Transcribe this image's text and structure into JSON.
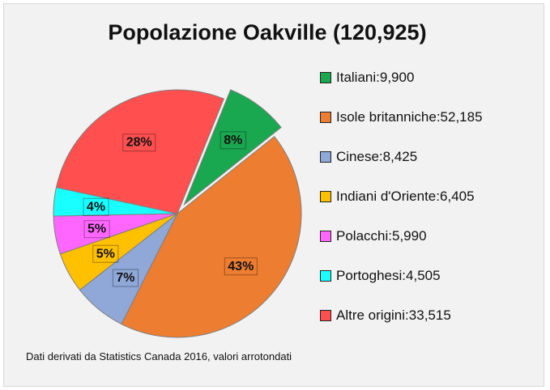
{
  "chart_data": {
    "type": "pie",
    "title": "Popolazione Oakville (120,925)",
    "slices": [
      {
        "name": "Italiani",
        "value": "9,900",
        "numeric": 9900,
        "percent": "8%",
        "color": "#19a750",
        "exploded": true
      },
      {
        "name": "Isole britanniche",
        "value": "52,185",
        "numeric": 52185,
        "percent": "43%",
        "color": "#ed7d31"
      },
      {
        "name": "Cinese",
        "value": "8,425",
        "numeric": 8425,
        "percent": "7%",
        "color": "#8fa8d8"
      },
      {
        "name": "Indiani d'Oriente",
        "value": "6,405",
        "numeric": 6405,
        "percent": "5%",
        "color": "#ffc000"
      },
      {
        "name": "Polacchi",
        "value": "5,990",
        "numeric": 5990,
        "percent": "5%",
        "color": "#ff66ff"
      },
      {
        "name": "Portoghesi",
        "value": "4,505",
        "numeric": 4505,
        "percent": "4%",
        "color": "#19ffff"
      },
      {
        "name": "Altre origini",
        "value": "33,515",
        "numeric": 33515,
        "percent": "28%",
        "color": "#ff4f4f"
      }
    ],
    "legend_position": "right"
  },
  "source": "Dati derivati da Statistics Canada 2016, valori arrotondati"
}
